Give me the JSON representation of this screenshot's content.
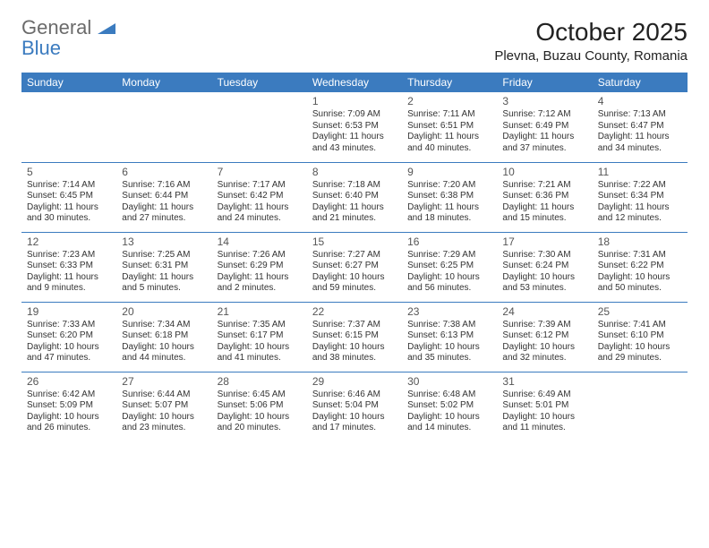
{
  "brand": {
    "word1": "General",
    "word2": "Blue"
  },
  "title": "October 2025",
  "location": "Plevna, Buzau County, Romania",
  "colors": {
    "header_bg": "#3b7bbf",
    "header_text": "#ffffff",
    "border": "#3b7bbf",
    "body_text": "#333333",
    "daynum": "#555555",
    "logo_gray": "#6b6b6b",
    "logo_blue": "#3b7bbf"
  },
  "weekdays": [
    "Sunday",
    "Monday",
    "Tuesday",
    "Wednesday",
    "Thursday",
    "Friday",
    "Saturday"
  ],
  "weeks": [
    [
      null,
      null,
      null,
      {
        "n": "1",
        "sr": "Sunrise: 7:09 AM",
        "ss": "Sunset: 6:53 PM",
        "d1": "Daylight: 11 hours",
        "d2": "and 43 minutes."
      },
      {
        "n": "2",
        "sr": "Sunrise: 7:11 AM",
        "ss": "Sunset: 6:51 PM",
        "d1": "Daylight: 11 hours",
        "d2": "and 40 minutes."
      },
      {
        "n": "3",
        "sr": "Sunrise: 7:12 AM",
        "ss": "Sunset: 6:49 PM",
        "d1": "Daylight: 11 hours",
        "d2": "and 37 minutes."
      },
      {
        "n": "4",
        "sr": "Sunrise: 7:13 AM",
        "ss": "Sunset: 6:47 PM",
        "d1": "Daylight: 11 hours",
        "d2": "and 34 minutes."
      }
    ],
    [
      {
        "n": "5",
        "sr": "Sunrise: 7:14 AM",
        "ss": "Sunset: 6:45 PM",
        "d1": "Daylight: 11 hours",
        "d2": "and 30 minutes."
      },
      {
        "n": "6",
        "sr": "Sunrise: 7:16 AM",
        "ss": "Sunset: 6:44 PM",
        "d1": "Daylight: 11 hours",
        "d2": "and 27 minutes."
      },
      {
        "n": "7",
        "sr": "Sunrise: 7:17 AM",
        "ss": "Sunset: 6:42 PM",
        "d1": "Daylight: 11 hours",
        "d2": "and 24 minutes."
      },
      {
        "n": "8",
        "sr": "Sunrise: 7:18 AM",
        "ss": "Sunset: 6:40 PM",
        "d1": "Daylight: 11 hours",
        "d2": "and 21 minutes."
      },
      {
        "n": "9",
        "sr": "Sunrise: 7:20 AM",
        "ss": "Sunset: 6:38 PM",
        "d1": "Daylight: 11 hours",
        "d2": "and 18 minutes."
      },
      {
        "n": "10",
        "sr": "Sunrise: 7:21 AM",
        "ss": "Sunset: 6:36 PM",
        "d1": "Daylight: 11 hours",
        "d2": "and 15 minutes."
      },
      {
        "n": "11",
        "sr": "Sunrise: 7:22 AM",
        "ss": "Sunset: 6:34 PM",
        "d1": "Daylight: 11 hours",
        "d2": "and 12 minutes."
      }
    ],
    [
      {
        "n": "12",
        "sr": "Sunrise: 7:23 AM",
        "ss": "Sunset: 6:33 PM",
        "d1": "Daylight: 11 hours",
        "d2": "and 9 minutes."
      },
      {
        "n": "13",
        "sr": "Sunrise: 7:25 AM",
        "ss": "Sunset: 6:31 PM",
        "d1": "Daylight: 11 hours",
        "d2": "and 5 minutes."
      },
      {
        "n": "14",
        "sr": "Sunrise: 7:26 AM",
        "ss": "Sunset: 6:29 PM",
        "d1": "Daylight: 11 hours",
        "d2": "and 2 minutes."
      },
      {
        "n": "15",
        "sr": "Sunrise: 7:27 AM",
        "ss": "Sunset: 6:27 PM",
        "d1": "Daylight: 10 hours",
        "d2": "and 59 minutes."
      },
      {
        "n": "16",
        "sr": "Sunrise: 7:29 AM",
        "ss": "Sunset: 6:25 PM",
        "d1": "Daylight: 10 hours",
        "d2": "and 56 minutes."
      },
      {
        "n": "17",
        "sr": "Sunrise: 7:30 AM",
        "ss": "Sunset: 6:24 PM",
        "d1": "Daylight: 10 hours",
        "d2": "and 53 minutes."
      },
      {
        "n": "18",
        "sr": "Sunrise: 7:31 AM",
        "ss": "Sunset: 6:22 PM",
        "d1": "Daylight: 10 hours",
        "d2": "and 50 minutes."
      }
    ],
    [
      {
        "n": "19",
        "sr": "Sunrise: 7:33 AM",
        "ss": "Sunset: 6:20 PM",
        "d1": "Daylight: 10 hours",
        "d2": "and 47 minutes."
      },
      {
        "n": "20",
        "sr": "Sunrise: 7:34 AM",
        "ss": "Sunset: 6:18 PM",
        "d1": "Daylight: 10 hours",
        "d2": "and 44 minutes."
      },
      {
        "n": "21",
        "sr": "Sunrise: 7:35 AM",
        "ss": "Sunset: 6:17 PM",
        "d1": "Daylight: 10 hours",
        "d2": "and 41 minutes."
      },
      {
        "n": "22",
        "sr": "Sunrise: 7:37 AM",
        "ss": "Sunset: 6:15 PM",
        "d1": "Daylight: 10 hours",
        "d2": "and 38 minutes."
      },
      {
        "n": "23",
        "sr": "Sunrise: 7:38 AM",
        "ss": "Sunset: 6:13 PM",
        "d1": "Daylight: 10 hours",
        "d2": "and 35 minutes."
      },
      {
        "n": "24",
        "sr": "Sunrise: 7:39 AM",
        "ss": "Sunset: 6:12 PM",
        "d1": "Daylight: 10 hours",
        "d2": "and 32 minutes."
      },
      {
        "n": "25",
        "sr": "Sunrise: 7:41 AM",
        "ss": "Sunset: 6:10 PM",
        "d1": "Daylight: 10 hours",
        "d2": "and 29 minutes."
      }
    ],
    [
      {
        "n": "26",
        "sr": "Sunrise: 6:42 AM",
        "ss": "Sunset: 5:09 PM",
        "d1": "Daylight: 10 hours",
        "d2": "and 26 minutes."
      },
      {
        "n": "27",
        "sr": "Sunrise: 6:44 AM",
        "ss": "Sunset: 5:07 PM",
        "d1": "Daylight: 10 hours",
        "d2": "and 23 minutes."
      },
      {
        "n": "28",
        "sr": "Sunrise: 6:45 AM",
        "ss": "Sunset: 5:06 PM",
        "d1": "Daylight: 10 hours",
        "d2": "and 20 minutes."
      },
      {
        "n": "29",
        "sr": "Sunrise: 6:46 AM",
        "ss": "Sunset: 5:04 PM",
        "d1": "Daylight: 10 hours",
        "d2": "and 17 minutes."
      },
      {
        "n": "30",
        "sr": "Sunrise: 6:48 AM",
        "ss": "Sunset: 5:02 PM",
        "d1": "Daylight: 10 hours",
        "d2": "and 14 minutes."
      },
      {
        "n": "31",
        "sr": "Sunrise: 6:49 AM",
        "ss": "Sunset: 5:01 PM",
        "d1": "Daylight: 10 hours",
        "d2": "and 11 minutes."
      },
      null
    ]
  ]
}
